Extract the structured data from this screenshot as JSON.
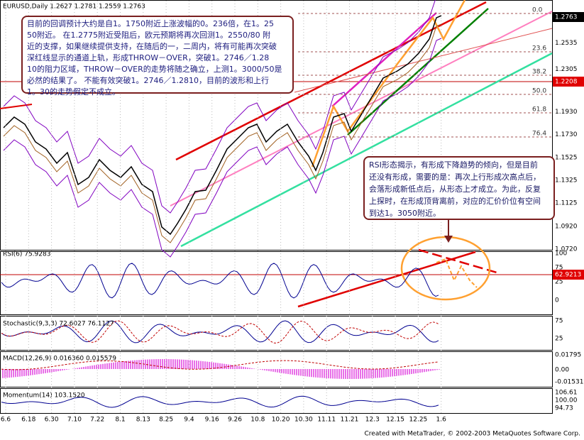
{
  "header": {
    "text": "EURUSD,Daily 1.2627 1.2781 1.2559 1.2763"
  },
  "annotations": [
    {
      "lines": [
        "目前的回调预计大约是自1。1750附近上涨波幅的0。236倍，在1。25",
        "50附近。 在1.2775附近受阻后，欧元预期将再次回测1。2550/80 附",
        "近的支撑，如果继续提供支持，在随后的一，二周内，将有可能再次突破",
        "深红线显示的通道上轨，形成THROW－OVER，突破1。2746／1.28",
        "10的阻力区域，THROW－OVER的走势将随之确立，上测1。3000/50是",
        "必然的结果了。 不能有效突破1。2746／1.2810，目前的波形和上行",
        "1。30的走势假定不成立。"
      ]
    },
    {
      "lines": [
        "RSI形态揭示，有形成下降趋势的倾向，但是目前",
        "还没有形成，需要的是：再次上行形成次高点后，",
        "会落形成新低点后，从形态上才成立。为此，反复",
        "上探时，在形成顶背离前，对应的汇价价位有空间",
        "到达1。3050附近。"
      ]
    }
  ],
  "price_axis": {
    "labels": [
      "1.2535",
      "1.2305",
      "1.1930",
      "1.1730",
      "1.1525",
      "1.1325",
      "1.1125",
      "1.0920",
      "1.0720"
    ],
    "current": "1.2763",
    "marker": "1.2208"
  },
  "fib_levels": [
    "0.0",
    "23.6",
    "38.2",
    "50.0",
    "61.8",
    "76.4"
  ],
  "panels": [
    {
      "title": "RSI(6) 75.9283",
      "axis": [
        "100",
        "75",
        "25",
        "0"
      ],
      "marker": "62.9213"
    },
    {
      "title": "Stochastic(9,3,3) 72.6027 76.1127",
      "axis": [
        "75",
        "25"
      ]
    },
    {
      "title": "MACD(12,26,9) 0.016360 0.015579",
      "axis": [
        "0.01795",
        "0.00",
        "-0.01531"
      ]
    },
    {
      "title": "Momentum(14) 103.1520",
      "axis": [
        "106.61",
        "100.00",
        "94.73"
      ]
    }
  ],
  "dates": [
    "6.6",
    "6.18",
    "6.30",
    "7.10",
    "7.22",
    "8.1",
    "8.13",
    "8.25",
    "9.4",
    "9.16",
    "9.26",
    "10.8",
    "10.20",
    "10.30",
    "11.11",
    "11.21",
    "12.3",
    "12.15",
    "12.25",
    "1.6"
  ],
  "footer": "Created with MetaTrader, © 2002-2003 MetaQuotes Software Corp."
}
